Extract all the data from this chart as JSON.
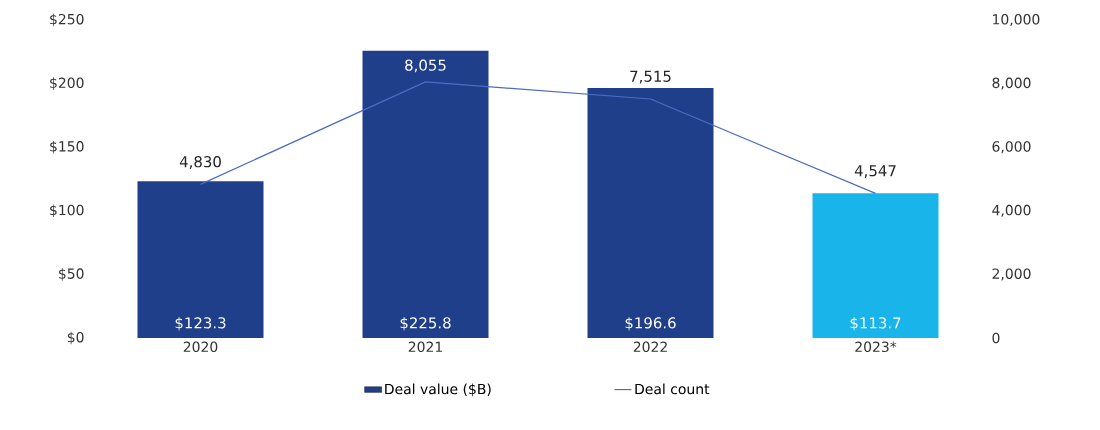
{
  "chart_data": {
    "type": "bar",
    "categories": [
      "2020",
      "2021",
      "2022",
      "2023*"
    ],
    "series": [
      {
        "name": "Deal value ($B)",
        "color": "#203f8a",
        "colors": [
          "#203f8a",
          "#203f8a",
          "#203f8a",
          "#19b5ea"
        ],
        "values": [
          123.3,
          225.8,
          196.6,
          113.7
        ],
        "value_labels": [
          "$123.3",
          "$225.8",
          "$196.6",
          "$113.7"
        ]
      },
      {
        "name": "Deal count",
        "type": "line",
        "axis": "y2",
        "color": "#4b6cc2",
        "values": [
          4830,
          8055,
          7515,
          4547
        ],
        "value_labels": [
          "4,830",
          "8,055",
          "7,515",
          "4,547"
        ]
      }
    ],
    "ylim": [
      0,
      250
    ],
    "yticks": [
      {
        "value": 0,
        "label": "$0"
      },
      {
        "value": 50,
        "label": "$50"
      },
      {
        "value": 100,
        "label": "$100"
      },
      {
        "value": 150,
        "label": "$150"
      },
      {
        "value": 200,
        "label": "$200"
      },
      {
        "value": 250,
        "label": "$250"
      }
    ],
    "y2lim": [
      0,
      10000
    ],
    "y2ticks": [
      {
        "value": 0,
        "label": "0"
      },
      {
        "value": 2000,
        "label": "2,000"
      },
      {
        "value": 4000,
        "label": "4,000"
      },
      {
        "value": 6000,
        "label": "6,000"
      },
      {
        "value": 8000,
        "label": "8,000"
      },
      {
        "value": 10000,
        "label": "10,000"
      }
    ],
    "grid": false,
    "legend": "bottom",
    "marker": "none",
    "line_style": "solid"
  }
}
